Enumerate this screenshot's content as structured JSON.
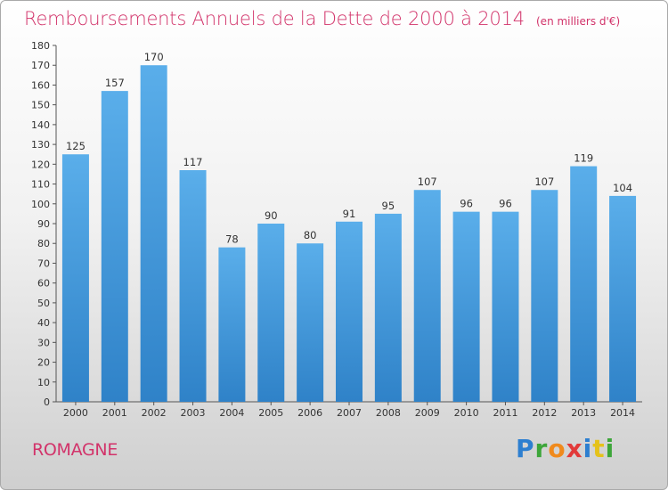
{
  "chart_data": {
    "type": "bar",
    "title": "Remboursements Annuels de la Dette de 2000 à 2014",
    "unit": "(en milliers d'€)",
    "categories": [
      "2000",
      "2001",
      "2002",
      "2003",
      "2004",
      "2005",
      "2006",
      "2007",
      "2008",
      "2009",
      "2010",
      "2011",
      "2012",
      "2013",
      "2014"
    ],
    "values": [
      125,
      157,
      170,
      117,
      78,
      90,
      80,
      91,
      95,
      107,
      96,
      96,
      107,
      119,
      104
    ],
    "ylim": [
      0,
      180
    ],
    "ytick_step": 10,
    "grid": false,
    "bar_color": "#4a9de0"
  },
  "footer": {
    "commune": "ROMAGNE",
    "brand": "Proxiti",
    "brand_letter_colors": [
      "#2d7fd0",
      "#3da63a",
      "#f08a1c",
      "#e23a3a",
      "#2d7fd0",
      "#e5c21a",
      "#3da63a"
    ]
  }
}
